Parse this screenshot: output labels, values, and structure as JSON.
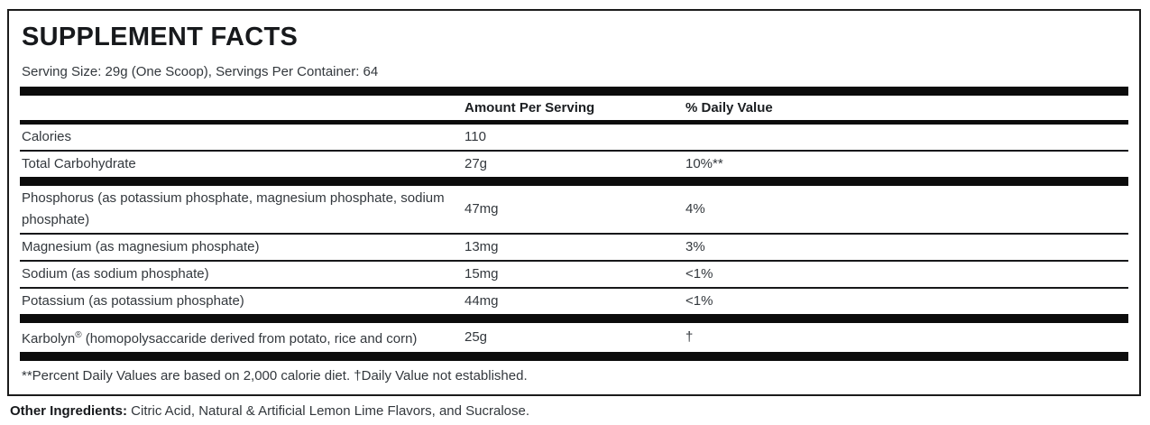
{
  "panel": {
    "title": "SUPPLEMENT FACTS",
    "serving_info": "Serving Size: 29g (One Scoop), Servings Per Container: 64",
    "columns": {
      "amount": "Amount Per Serving",
      "daily_value": "% Daily Value"
    },
    "rows": [
      {
        "label": "Calories",
        "amount": "110",
        "dv": ""
      },
      {
        "label": "Total Carbohydrate",
        "amount": "27g",
        "dv": "10%**"
      },
      {
        "label": "Phosphorus (as potassium phosphate, magnesium phosphate, sodium phosphate)",
        "amount": "47mg",
        "dv": "4%"
      },
      {
        "label": "Magnesium (as magnesium phosphate)",
        "amount": "13mg",
        "dv": "3%"
      },
      {
        "label": "Sodium (as sodium phosphate)",
        "amount": "15mg",
        "dv": "<1%"
      },
      {
        "label": "Potassium (as potassium phosphate)",
        "amount": "44mg",
        "dv": "<1%"
      },
      {
        "label_name": "Karbolyn",
        "label_mark": "®",
        "label_rest": " (homopolysaccaride derived from potato, rice and corn)",
        "amount": "25g",
        "dv": "†"
      }
    ],
    "footnote": "**Percent Daily Values are based on 2,000 calorie diet. †Daily Value not established.",
    "other_ingredients_label": "Other Ingredients:",
    "other_ingredients": " Citric Acid, Natural & Artificial Lemon Lime Flavors, and Sucralose."
  },
  "colors": {
    "divider_bar": "#0c0c0c",
    "text": "#33383d",
    "heading": "#17191c"
  }
}
